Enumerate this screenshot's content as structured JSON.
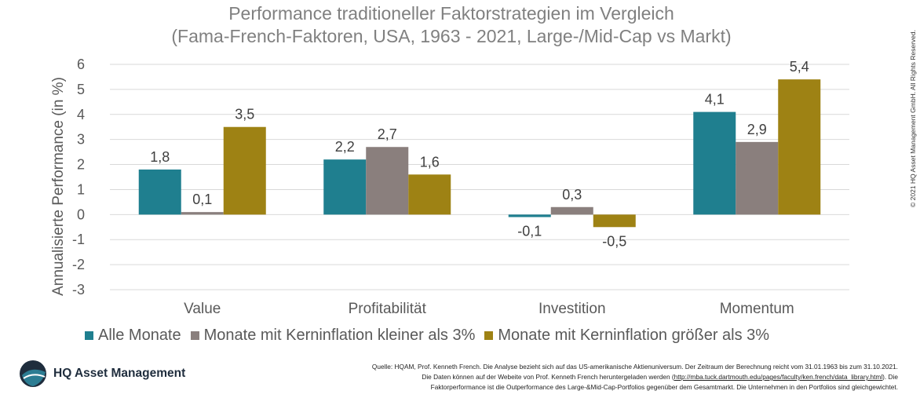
{
  "chart_data": {
    "type": "bar",
    "title": "Performance traditioneller Faktorstrategien im Vergleich",
    "subtitle": "(Fama-French-Faktoren, USA, 1963 - 2021, Large-/Mid-Cap vs Markt)",
    "ylabel": "Annualisierte Performance (in %)",
    "xlabel": "",
    "ylim": [
      -3,
      6
    ],
    "yticks": [
      "6",
      "5",
      "4",
      "3",
      "2",
      "1",
      "0",
      "-1",
      "-2",
      "-3"
    ],
    "grid": true,
    "legend_position": "bottom",
    "categories": [
      "Value",
      "Profitabilität",
      "Investition",
      "Momentum"
    ],
    "series": [
      {
        "name": "Alle Monate",
        "color": "#1f7f8f",
        "values": [
          1.8,
          2.2,
          -0.1,
          4.1
        ],
        "labels": [
          "1,8",
          "2,2",
          "-0,1",
          "4,1"
        ]
      },
      {
        "name": "Monate mit Kerninflation kleiner als 3%",
        "color": "#8a7f7d",
        "values": [
          0.1,
          2.7,
          0.3,
          2.9
        ],
        "labels": [
          "0,1",
          "2,7",
          "0,3",
          "2,9"
        ]
      },
      {
        "name": "Monate mit Kerninflation größer als 3%",
        "color": "#9e8214",
        "values": [
          3.5,
          1.6,
          -0.5,
          5.4
        ],
        "labels": [
          "3,5",
          "1,6",
          "-0,5",
          "5,4"
        ]
      }
    ]
  },
  "copyright": "© 2021 HQ Asset Management GmbH. All Rights Reserved.",
  "logo": {
    "text": "HQ Asset Management",
    "icon": "hq-logo-icon"
  },
  "source": {
    "line1": "Quelle: HQAM, Prof. Kenneth French. Die Analyse bezieht sich auf das US-amerikanische Aktienuniversum. Der Zeitraum der Berechnung reicht vom 31.01.1963 bis zum 31.10.2021.",
    "line2_pre": "Die Daten können auf der Webeite von Prof. Kenneth French heruntergeladen werden (",
    "line2_link": "http://mba.tuck.dartmouth.edu/pages/faculty/ken.french/data_library.html",
    "line2_post": "). Die",
    "line3": "Faktorperformance ist die Outperformance des Large-&Mid-Cap-Portfolios gegenüber dem Gesamtmarkt. Die Unternehmen in den Portfolios sind gleichgewichtet."
  }
}
